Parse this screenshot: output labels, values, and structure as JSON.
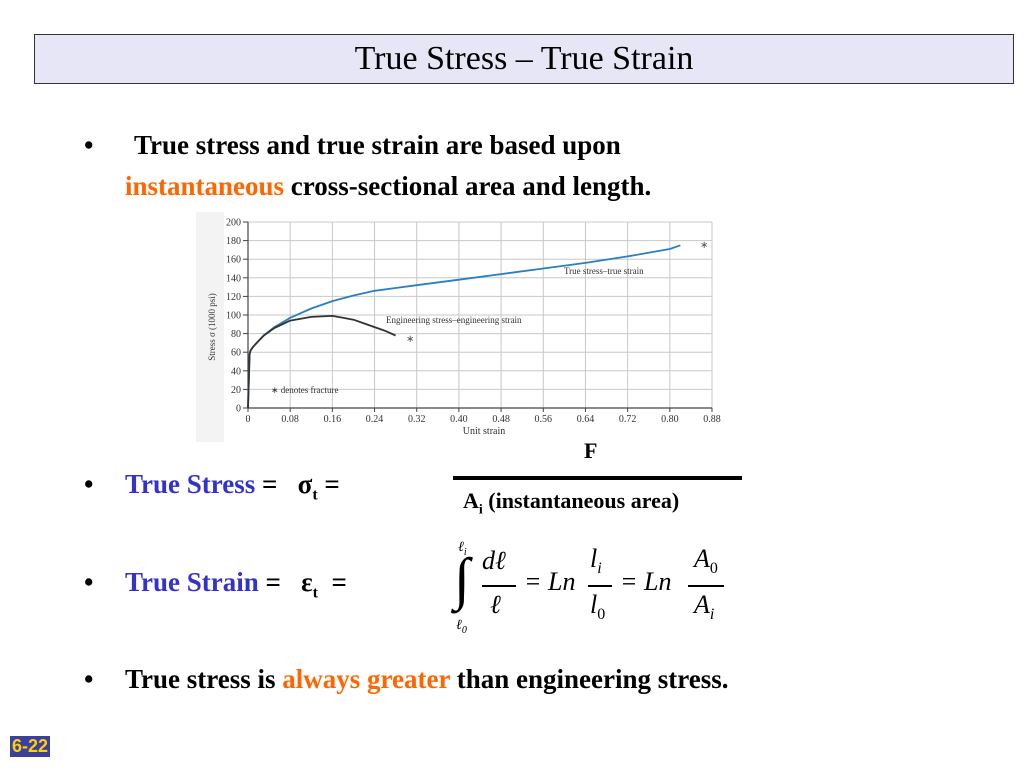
{
  "title": "True Stress – True Strain",
  "bullets": {
    "b1_part1": "True stress and true strain are based upon",
    "b1_highlight": "instantaneous",
    "b1_part2": "cross-sectional area and length.",
    "stress_label": "True Stress",
    "stress_eq": "=   σ",
    "stress_sub": "t",
    "stress_eq2": " =",
    "strain_label": "True Strain",
    "strain_eq": "=   ε",
    "strain_sub": "t",
    "strain_eq2": "  =",
    "b4_part1": "True stress is",
    "b4_highlight": "always greater",
    "b4_part2": "than engineering stress."
  },
  "fraction": {
    "numerator": "F",
    "denominator_a": "A",
    "denominator_sub": "i",
    "denominator_rest": " (instantaneous area)"
  },
  "strain_formula": {
    "upper_limit": "ℓ",
    "upper_sub": "i",
    "lower_limit": "ℓ",
    "lower_sub": "0",
    "integrand_num": "dℓ",
    "integrand_den": "ℓ",
    "eq1": "= Ln",
    "li": "l",
    "li_sub": "i",
    "l0": "l",
    "l0_sub": "0",
    "eq2": "= Ln",
    "a0": "A",
    "a0_sub": "0",
    "ai": "A",
    "ai_sub": "i"
  },
  "slide_number": "6-22",
  "chart_data": {
    "type": "line",
    "xlabel": "Unit strain",
    "ylabel": "Stress σ (1000 psi)",
    "xlim": [
      0,
      0.88
    ],
    "ylim": [
      0,
      200
    ],
    "x_ticks": [
      "0",
      "0.08",
      "0.16",
      "0.24",
      "0.32",
      "0.40",
      "0.48",
      "0.56",
      "0.64",
      "0.72",
      "0.80",
      "0.88"
    ],
    "y_ticks": [
      "0",
      "20",
      "40",
      "60",
      "80",
      "100",
      "120",
      "140",
      "160",
      "180",
      "200"
    ],
    "grid": true,
    "series": [
      {
        "name": "True stress–true strain",
        "color": "#2a7fc0",
        "x": [
          0,
          0.003,
          0.005,
          0.01,
          0.02,
          0.03,
          0.05,
          0.08,
          0.12,
          0.16,
          0.2,
          0.24,
          0.28,
          0.32,
          0.4,
          0.48,
          0.56,
          0.64,
          0.72,
          0.8,
          0.82
        ],
        "y": [
          0,
          58,
          62,
          66,
          72,
          78,
          87,
          97,
          107,
          115,
          121,
          126,
          129,
          132,
          138,
          144,
          150,
          156,
          163,
          171,
          175
        ]
      },
      {
        "name": "Engineering stress–engineering strain",
        "color": "#333333",
        "x": [
          0,
          0.003,
          0.005,
          0.01,
          0.02,
          0.03,
          0.05,
          0.08,
          0.12,
          0.16,
          0.18,
          0.2,
          0.22,
          0.24,
          0.26,
          0.28
        ],
        "y": [
          0,
          58,
          62,
          66,
          72,
          78,
          86,
          94,
          98,
          99,
          97,
          95,
          91,
          87,
          83,
          78
        ]
      }
    ],
    "annotations": {
      "true_label": "True stress–true strain",
      "eng_label": "Engineering stress–engineering strain",
      "fracture_note": "∗ denotes fracture",
      "fracture_marker": "∗"
    }
  }
}
